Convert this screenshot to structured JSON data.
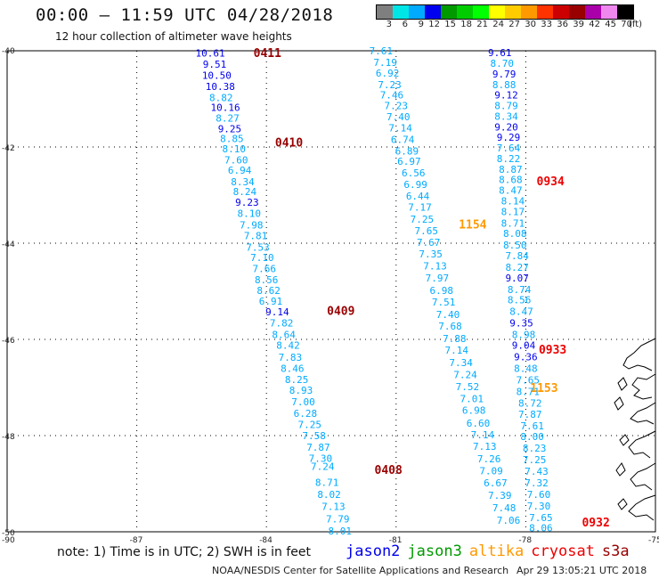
{
  "header": {
    "title": "00:00 – 11:59 UTC 04/28/2018",
    "subtitle": "12 hour collection of altimeter wave heights"
  },
  "colorbar": {
    "labels": [
      "3",
      "6",
      "9",
      "12",
      "15",
      "18",
      "21",
      "24",
      "27",
      "30",
      "33",
      "36",
      "39",
      "42",
      "45",
      "70"
    ],
    "colors": [
      "#7f7f7f",
      "#00e5e5",
      "#00aaff",
      "#0000ee",
      "#009a00",
      "#00cc00",
      "#00ff00",
      "#ffff00",
      "#ffcc00",
      "#ff9900",
      "#ff3300",
      "#cc0000",
      "#990000",
      "#aa00aa",
      "#ee88ee",
      "#000000"
    ],
    "unit": "(ft)"
  },
  "axes": {
    "y_ticks": [
      "-40",
      "-42",
      "-44",
      "-46",
      "-48",
      "-50"
    ],
    "x_ticks": [
      "-90",
      "-87",
      "-84",
      "-81",
      "-78",
      "-75"
    ]
  },
  "chart_data": {
    "type": "map",
    "lat_range": [
      -50,
      -40
    ],
    "lon_range": [
      -90,
      -75
    ],
    "tracks": [
      {
        "satellite": "jason2",
        "times": [
          {
            "label": "0411",
            "lat": -40.04,
            "lon": -84.3
          },
          {
            "label": "0410",
            "lat": -41.9,
            "lon": -83.8
          },
          {
            "label": "0409",
            "lat": -45.4,
            "lon": -82.6
          },
          {
            "label": "0408",
            "lat": -48.7,
            "lon": -81.5
          }
        ],
        "points": [
          {
            "v": "10.61",
            "lat": -40.05,
            "lon": -85.3,
            "c": "#0000ee"
          },
          {
            "v": "9.51",
            "lat": -40.28,
            "lon": -85.2,
            "c": "#0000ee"
          },
          {
            "v": "10.50",
            "lat": -40.51,
            "lon": -85.15,
            "c": "#0000ee"
          },
          {
            "v": "10.38",
            "lat": -40.74,
            "lon": -85.07,
            "c": "#0000ee"
          },
          {
            "v": "8.82",
            "lat": -40.97,
            "lon": -85.05,
            "c": "#00aaff"
          },
          {
            "v": "10.16",
            "lat": -41.18,
            "lon": -84.95,
            "c": "#0000ee"
          },
          {
            "v": "8.27",
            "lat": -41.4,
            "lon": -84.9,
            "c": "#00aaff"
          },
          {
            "v": "9.25",
            "lat": -41.62,
            "lon": -84.85,
            "c": "#0000ee"
          },
          {
            "v": "8.85",
            "lat": -41.82,
            "lon": -84.8,
            "c": "#00aaff"
          },
          {
            "v": "8.10",
            "lat": -42.04,
            "lon": -84.75,
            "c": "#00aaff"
          },
          {
            "v": "7.60",
            "lat": -42.27,
            "lon": -84.7,
            "c": "#00aaff"
          },
          {
            "v": "6.94",
            "lat": -42.48,
            "lon": -84.62,
            "c": "#00aaff"
          },
          {
            "v": "8.34",
            "lat": -42.72,
            "lon": -84.55,
            "c": "#00aaff"
          },
          {
            "v": "8.24",
            "lat": -42.93,
            "lon": -84.5,
            "c": "#00aaff"
          },
          {
            "v": "9.23",
            "lat": -43.15,
            "lon": -84.45,
            "c": "#0000ee"
          },
          {
            "v": "8.10",
            "lat": -43.38,
            "lon": -84.4,
            "c": "#00aaff"
          },
          {
            "v": "7.98",
            "lat": -43.62,
            "lon": -84.35,
            "c": "#00aaff"
          },
          {
            "v": "7.81",
            "lat": -43.84,
            "lon": -84.25,
            "c": "#00aaff"
          },
          {
            "v": "7.53",
            "lat": -44.08,
            "lon": -84.2,
            "c": "#00aaff"
          },
          {
            "v": "7.10",
            "lat": -44.3,
            "lon": -84.1,
            "c": "#00aaff"
          },
          {
            "v": "7.66",
            "lat": -44.53,
            "lon": -84.05,
            "c": "#00aaff"
          },
          {
            "v": "8.56",
            "lat": -44.76,
            "lon": -84.0,
            "c": "#00aaff"
          },
          {
            "v": "8.62",
            "lat": -44.98,
            "lon": -83.95,
            "c": "#00aaff"
          },
          {
            "v": "6.91",
            "lat": -45.2,
            "lon": -83.9,
            "c": "#00aaff"
          },
          {
            "v": "9.14",
            "lat": -45.43,
            "lon": -83.75,
            "c": "#0000ee"
          },
          {
            "v": "7.82",
            "lat": -45.66,
            "lon": -83.65,
            "c": "#00aaff"
          },
          {
            "v": "8.64",
            "lat": -45.9,
            "lon": -83.6,
            "c": "#00aaff"
          },
          {
            "v": "8.42",
            "lat": -46.12,
            "lon": -83.5,
            "c": "#00aaff"
          },
          {
            "v": "7.83",
            "lat": -46.37,
            "lon": -83.45,
            "c": "#00aaff"
          },
          {
            "v": "8.46",
            "lat": -46.6,
            "lon": -83.4,
            "c": "#00aaff"
          },
          {
            "v": "8.25",
            "lat": -46.83,
            "lon": -83.3,
            "c": "#00aaff"
          },
          {
            "v": "8.93",
            "lat": -47.06,
            "lon": -83.2,
            "c": "#00aaff"
          },
          {
            "v": "7.00",
            "lat": -47.3,
            "lon": -83.15,
            "c": "#00aaff"
          },
          {
            "v": "6.28",
            "lat": -47.54,
            "lon": -83.1,
            "c": "#00aaff"
          },
          {
            "v": "7.25",
            "lat": -47.77,
            "lon": -83.0,
            "c": "#00aaff"
          },
          {
            "v": "7.58",
            "lat": -48.0,
            "lon": -82.9,
            "c": "#00aaff"
          },
          {
            "v": "7.87",
            "lat": -48.24,
            "lon": -82.8,
            "c": "#00aaff"
          },
          {
            "v": "7.30",
            "lat": -48.47,
            "lon": -82.75,
            "c": "#00aaff"
          },
          {
            "v": "7.24",
            "lat": -48.64,
            "lon": -82.7,
            "c": "#00aaff"
          },
          {
            "v": "8.71",
            "lat": -48.97,
            "lon": -82.6,
            "c": "#00aaff"
          },
          {
            "v": "8.02",
            "lat": -49.22,
            "lon": -82.55,
            "c": "#00aaff"
          },
          {
            "v": "7.13",
            "lat": -49.47,
            "lon": -82.45,
            "c": "#00aaff"
          },
          {
            "v": "7.79",
            "lat": -49.73,
            "lon": -82.35,
            "c": "#00aaff"
          },
          {
            "v": "8.01",
            "lat": -49.98,
            "lon": -82.3,
            "c": "#00aaff"
          }
        ]
      },
      {
        "satellite": "altika",
        "times": [
          {
            "label": "1154",
            "lat": -43.6,
            "lon": -79.55
          },
          {
            "label": "1153",
            "lat": -47.0,
            "lon": -77.9
          }
        ],
        "points": [
          {
            "v": "7.61",
            "lat": -40.0,
            "lon": -81.35,
            "c": "#00aaff"
          },
          {
            "v": "7.19",
            "lat": -40.24,
            "lon": -81.25,
            "c": "#00aaff"
          },
          {
            "v": "6.92",
            "lat": -40.46,
            "lon": -81.2,
            "c": "#00aaff"
          },
          {
            "v": "7.23",
            "lat": -40.7,
            "lon": -81.15,
            "c": "#00aaff"
          },
          {
            "v": "7.46",
            "lat": -40.92,
            "lon": -81.1,
            "c": "#00aaff"
          },
          {
            "v": "7.23",
            "lat": -41.14,
            "lon": -81.0,
            "c": "#00aaff"
          },
          {
            "v": "7.40",
            "lat": -41.37,
            "lon": -80.95,
            "c": "#00aaff"
          },
          {
            "v": "7.14",
            "lat": -41.6,
            "lon": -80.9,
            "c": "#00aaff"
          },
          {
            "v": "6.74",
            "lat": -41.84,
            "lon": -80.85,
            "c": "#00aaff"
          },
          {
            "v": "6.89",
            "lat": -42.08,
            "lon": -80.75,
            "c": "#00aaff"
          },
          {
            "v": "6.97",
            "lat": -42.3,
            "lon": -80.7,
            "c": "#00aaff"
          },
          {
            "v": "6.56",
            "lat": -42.54,
            "lon": -80.6,
            "c": "#00aaff"
          },
          {
            "v": "6.99",
            "lat": -42.78,
            "lon": -80.55,
            "c": "#00aaff"
          },
          {
            "v": "6.44",
            "lat": -43.02,
            "lon": -80.5,
            "c": "#00aaff"
          },
          {
            "v": "7.17",
            "lat": -43.25,
            "lon": -80.45,
            "c": "#00aaff"
          },
          {
            "v": "7.25",
            "lat": -43.5,
            "lon": -80.4,
            "c": "#00aaff"
          },
          {
            "v": "7.65",
            "lat": -43.74,
            "lon": -80.3,
            "c": "#00aaff"
          },
          {
            "v": "7.67",
            "lat": -43.98,
            "lon": -80.25,
            "c": "#00aaff"
          },
          {
            "v": "7.35",
            "lat": -44.22,
            "lon": -80.2,
            "c": "#00aaff"
          },
          {
            "v": "7.13",
            "lat": -44.47,
            "lon": -80.1,
            "c": "#00aaff"
          },
          {
            "v": "7.97",
            "lat": -44.72,
            "lon": -80.05,
            "c": "#00aaff"
          },
          {
            "v": "6.98",
            "lat": -44.98,
            "lon": -79.95,
            "c": "#00aaff"
          },
          {
            "v": "7.51",
            "lat": -45.22,
            "lon": -79.9,
            "c": "#00aaff"
          },
          {
            "v": "7.40",
            "lat": -45.48,
            "lon": -79.8,
            "c": "#00aaff"
          },
          {
            "v": "7.68",
            "lat": -45.72,
            "lon": -79.75,
            "c": "#00aaff"
          },
          {
            "v": "7.88",
            "lat": -45.98,
            "lon": -79.65,
            "c": "#00aaff"
          },
          {
            "v": "7.14",
            "lat": -46.22,
            "lon": -79.6,
            "c": "#00aaff"
          },
          {
            "v": "7.34",
            "lat": -46.48,
            "lon": -79.5,
            "c": "#00aaff"
          },
          {
            "v": "7.24",
            "lat": -46.73,
            "lon": -79.4,
            "c": "#00aaff"
          },
          {
            "v": "7.52",
            "lat": -46.98,
            "lon": -79.35,
            "c": "#00aaff"
          },
          {
            "v": "7.01",
            "lat": -47.23,
            "lon": -79.25,
            "c": "#00aaff"
          },
          {
            "v": "6.98",
            "lat": -47.47,
            "lon": -79.2,
            "c": "#00aaff"
          },
          {
            "v": "6.60",
            "lat": -47.74,
            "lon": -79.1,
            "c": "#00aaff"
          },
          {
            "v": "7.14",
            "lat": -47.98,
            "lon": -79.0,
            "c": "#00aaff"
          },
          {
            "v": "7.13",
            "lat": -48.22,
            "lon": -78.95,
            "c": "#00aaff"
          },
          {
            "v": "7.26",
            "lat": -48.48,
            "lon": -78.85,
            "c": "#00aaff"
          },
          {
            "v": "7.09",
            "lat": -48.73,
            "lon": -78.8,
            "c": "#00aaff"
          },
          {
            "v": "6.67",
            "lat": -48.98,
            "lon": -78.7,
            "c": "#00aaff"
          },
          {
            "v": "7.39",
            "lat": -49.24,
            "lon": -78.6,
            "c": "#00aaff"
          },
          {
            "v": "7.48",
            "lat": -49.5,
            "lon": -78.5,
            "c": "#00aaff"
          },
          {
            "v": "7.06",
            "lat": -49.76,
            "lon": -78.4,
            "c": "#00aaff"
          }
        ]
      },
      {
        "satellite": "cryosat",
        "times": [
          {
            "label": "0934",
            "lat": -42.7,
            "lon": -77.75
          },
          {
            "label": "0933",
            "lat": -46.2,
            "lon": -77.7
          },
          {
            "label": "0932",
            "lat": -49.8,
            "lon": -76.7
          }
        ],
        "points": [
          {
            "v": "9.61",
            "lat": -40.04,
            "lon": -78.6,
            "c": "#0000ee"
          },
          {
            "v": "8.70",
            "lat": -40.26,
            "lon": -78.55,
            "c": "#00aaff"
          },
          {
            "v": "9.79",
            "lat": -40.48,
            "lon": -78.5,
            "c": "#0000ee"
          },
          {
            "v": "8.88",
            "lat": -40.7,
            "lon": -78.5,
            "c": "#00aaff"
          },
          {
            "v": "9.12",
            "lat": -40.92,
            "lon": -78.45,
            "c": "#0000ee"
          },
          {
            "v": "8.79",
            "lat": -41.14,
            "lon": -78.45,
            "c": "#00aaff"
          },
          {
            "v": "8.34",
            "lat": -41.36,
            "lon": -78.45,
            "c": "#00aaff"
          },
          {
            "v": "9.20",
            "lat": -41.58,
            "lon": -78.45,
            "c": "#0000ee"
          },
          {
            "v": "9.29",
            "lat": -41.8,
            "lon": -78.4,
            "c": "#0000ee"
          },
          {
            "v": "7.64",
            "lat": -42.02,
            "lon": -78.4,
            "c": "#00aaff"
          },
          {
            "v": "8.22",
            "lat": -42.24,
            "lon": -78.4,
            "c": "#00aaff"
          },
          {
            "v": "8.87",
            "lat": -42.46,
            "lon": -78.35,
            "c": "#00aaff"
          },
          {
            "v": "8.68",
            "lat": -42.68,
            "lon": -78.35,
            "c": "#00aaff"
          },
          {
            "v": "8.47",
            "lat": -42.9,
            "lon": -78.35,
            "c": "#00aaff"
          },
          {
            "v": "8.14",
            "lat": -43.12,
            "lon": -78.3,
            "c": "#00aaff"
          },
          {
            "v": "8.17",
            "lat": -43.34,
            "lon": -78.3,
            "c": "#00aaff"
          },
          {
            "v": "8.71",
            "lat": -43.58,
            "lon": -78.3,
            "c": "#00aaff"
          },
          {
            "v": "8.08",
            "lat": -43.8,
            "lon": -78.25,
            "c": "#00aaff"
          },
          {
            "v": "8.50",
            "lat": -44.04,
            "lon": -78.25,
            "c": "#00aaff"
          },
          {
            "v": "7.84",
            "lat": -44.26,
            "lon": -78.2,
            "c": "#00aaff"
          },
          {
            "v": "8.27",
            "lat": -44.5,
            "lon": -78.2,
            "c": "#00aaff"
          },
          {
            "v": "9.07",
            "lat": -44.72,
            "lon": -78.2,
            "c": "#0000ee"
          },
          {
            "v": "8.74",
            "lat": -44.96,
            "lon": -78.15,
            "c": "#00aaff"
          },
          {
            "v": "8.56",
            "lat": -45.18,
            "lon": -78.15,
            "c": "#00aaff"
          },
          {
            "v": "8.47",
            "lat": -45.42,
            "lon": -78.1,
            "c": "#00aaff"
          },
          {
            "v": "9.35",
            "lat": -45.66,
            "lon": -78.1,
            "c": "#0000ee"
          },
          {
            "v": "8.98",
            "lat": -45.9,
            "lon": -78.05,
            "c": "#00aaff"
          },
          {
            "v": "9.04",
            "lat": -46.12,
            "lon": -78.05,
            "c": "#0000ee"
          },
          {
            "v": "9.36",
            "lat": -46.36,
            "lon": -78.0,
            "c": "#0000ee"
          },
          {
            "v": "8.48",
            "lat": -46.6,
            "lon": -78.0,
            "c": "#00aaff"
          },
          {
            "v": "7.65",
            "lat": -46.84,
            "lon": -77.95,
            "c": "#00aaff"
          },
          {
            "v": "8.71",
            "lat": -47.08,
            "lon": -77.95,
            "c": "#00aaff"
          },
          {
            "v": "8.72",
            "lat": -47.32,
            "lon": -77.9,
            "c": "#00aaff"
          },
          {
            "v": "7.87",
            "lat": -47.56,
            "lon": -77.9,
            "c": "#00aaff"
          },
          {
            "v": "7.61",
            "lat": -47.8,
            "lon": -77.85,
            "c": "#00aaff"
          },
          {
            "v": "8.00",
            "lat": -48.02,
            "lon": -77.85,
            "c": "#00aaff"
          },
          {
            "v": "8.23",
            "lat": -48.26,
            "lon": -77.8,
            "c": "#00aaff"
          },
          {
            "v": "7.25",
            "lat": -48.5,
            "lon": -77.8,
            "c": "#00aaff"
          },
          {
            "v": "7.43",
            "lat": -48.74,
            "lon": -77.75,
            "c": "#00aaff"
          },
          {
            "v": "7.32",
            "lat": -48.98,
            "lon": -77.75,
            "c": "#00aaff"
          },
          {
            "v": "7.60",
            "lat": -49.22,
            "lon": -77.7,
            "c": "#00aaff"
          },
          {
            "v": "7.30",
            "lat": -49.46,
            "lon": -77.7,
            "c": "#00aaff"
          },
          {
            "v": "7.65",
            "lat": -49.7,
            "lon": -77.65,
            "c": "#00aaff"
          },
          {
            "v": "8.06",
            "lat": -49.92,
            "lon": -77.65,
            "c": "#00aaff"
          }
        ]
      }
    ],
    "grid": true
  },
  "note": "note: 1) Time is in UTC; 2) SWH is in feet",
  "legend": [
    {
      "name": "jason2",
      "color": "#0000ee"
    },
    {
      "name": "jason3",
      "color": "#009a00"
    },
    {
      "name": "altika",
      "color": "#ff9900"
    },
    {
      "name": "cryosat",
      "color": "#ee0000"
    },
    {
      "name": "s3a",
      "color": "#990000"
    }
  ],
  "time_label_colors": {
    "jason2": "#990000",
    "altika": "#ff9900",
    "cryosat": "#ee0000"
  },
  "footer": {
    "left": "NOAA/NESDIS Center for Satellite Applications and Research",
    "right": "Apr 29 13:05:21 UTC 2018"
  }
}
